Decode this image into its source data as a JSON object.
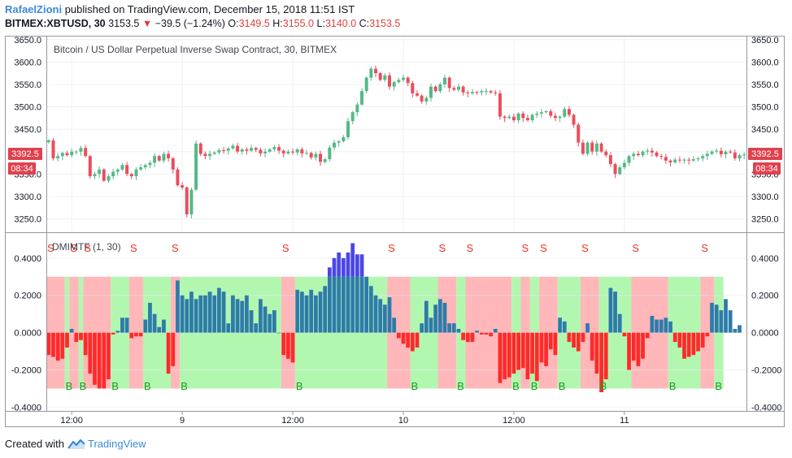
{
  "header": {
    "author": "RafaelZioni",
    "published_text": "published on TradingView.com, December 15, 2018 11:51 IST",
    "symbol": "BITMEX:XBTUSD, 30",
    "last": "3153.5",
    "change_arrow": "▼",
    "change": "−39.5 (−1.24%)",
    "o_label": "O:",
    "o_value": "3149.5",
    "h_label": "H:",
    "h_value": "3155.0",
    "l_label": "L:",
    "l_value": "3140.0",
    "c_label": "C:",
    "c_value": "3153.5"
  },
  "price_pane": {
    "title": "Bitcoin / US Dollar Perpetual Inverse Swap Contract, 30, BITMEX",
    "price_badge": "3392.5",
    "time_badge": "08:34"
  },
  "indicator_pane": {
    "title": "DMIMTF (1, 30)"
  },
  "footer": {
    "created_with": "Created with",
    "brand": "TradingView"
  },
  "colors": {
    "up": "#53b987",
    "down": "#eb4d5c",
    "badge": "#e0414e",
    "hist_pos": "#2e7bab",
    "hist_neg": "#ff2a2a",
    "hist_strong": "#4a46e8",
    "zone_buy": "#b2f7b0",
    "zone_sell": "#ffb7b9",
    "sig_s": "#e8342a",
    "sig_b": "#1c9c1c"
  },
  "chart_data": [
    {
      "type": "candlestick",
      "title": "Bitcoin / US Dollar Perpetual Inverse Swap Contract, 30, BITMEX",
      "ylim": [
        3220,
        3655
      ],
      "y_ticks": [
        3250,
        3300,
        3350,
        3400,
        3450,
        3500,
        3550,
        3600,
        3650
      ],
      "y_tick_labels": [
        "3250.0",
        "3300.0",
        "3350.0",
        "3400.0",
        "3450.0",
        "3500.0",
        "3550.0",
        "3600.0",
        "3650.0"
      ],
      "x_tick_labels": [
        "12:00",
        "9",
        "12:00",
        "10",
        "12:00",
        "11"
      ],
      "x_tick_bars": [
        5,
        29,
        53,
        77,
        101,
        125
      ],
      "close": [
        3425,
        3385,
        3390,
        3397,
        3392,
        3400,
        3400,
        3408,
        3390,
        3345,
        3350,
        3360,
        3335,
        3345,
        3355,
        3360,
        3370,
        3350,
        3345,
        3360,
        3365,
        3370,
        3375,
        3390,
        3380,
        3395,
        3385,
        3360,
        3325,
        3320,
        3260,
        3315,
        3418,
        3395,
        3390,
        3395,
        3398,
        3403,
        3402,
        3407,
        3413,
        3400,
        3405,
        3402,
        3408,
        3404,
        3396,
        3400,
        3405,
        3410,
        3402,
        3396,
        3400,
        3398,
        3405,
        3396,
        3397,
        3387,
        3395,
        3377,
        3383,
        3409,
        3420,
        3423,
        3432,
        3468,
        3488,
        3505,
        3535,
        3565,
        3585,
        3575,
        3560,
        3570,
        3545,
        3555,
        3560,
        3565,
        3553,
        3530,
        3525,
        3512,
        3520,
        3545,
        3535,
        3550,
        3565,
        3542,
        3538,
        3545,
        3532,
        3530,
        3533,
        3532,
        3535,
        3535,
        3532,
        3530,
        3478,
        3475,
        3478,
        3470,
        3485,
        3475,
        3470,
        3482,
        3485,
        3488,
        3490,
        3480,
        3475,
        3478,
        3495,
        3482,
        3460,
        3420,
        3395,
        3420,
        3400,
        3418,
        3400,
        3392,
        3372,
        3350,
        3365,
        3375,
        3390,
        3395,
        3392,
        3400,
        3402,
        3398,
        3390,
        3388,
        3380,
        3376,
        3382,
        3380,
        3382,
        3380,
        3383,
        3385,
        3390,
        3395,
        3400,
        3402,
        3394,
        3400,
        3398,
        3385,
        3392,
        3393.5
      ]
    },
    {
      "type": "bar",
      "title": "DMIMTF (1, 30)",
      "ylim": [
        -0.42,
        0.53
      ],
      "y_ticks": [
        -0.4,
        -0.2,
        0,
        0.2,
        0.4
      ],
      "y_tick_labels": [
        "-0.4000",
        "-0.2000",
        "0.0000",
        "0.2000",
        "0.4000"
      ],
      "zones": [
        {
          "from": 0,
          "to": 4,
          "signal": "S"
        },
        {
          "from": 4,
          "to": 5,
          "signal": "B"
        },
        {
          "from": 5,
          "to": 7,
          "signal": "S"
        },
        {
          "from": 7,
          "to": 8,
          "signal": "B"
        },
        {
          "from": 8,
          "to": 14,
          "signal": "S"
        },
        {
          "from": 14,
          "to": 18,
          "signal": "B"
        },
        {
          "from": 18,
          "to": 21,
          "signal": "S"
        },
        {
          "from": 21,
          "to": 27,
          "signal": "B"
        },
        {
          "from": 27,
          "to": 29,
          "signal": "S"
        },
        {
          "from": 29,
          "to": 51,
          "signal": "B"
        },
        {
          "from": 51,
          "to": 54,
          "signal": "S"
        },
        {
          "from": 54,
          "to": 74,
          "signal": "B"
        },
        {
          "from": 74,
          "to": 79,
          "signal": "S"
        },
        {
          "from": 79,
          "to": 85,
          "signal": "B"
        },
        {
          "from": 85,
          "to": 89,
          "signal": "S"
        },
        {
          "from": 89,
          "to": 91,
          "signal": "B"
        },
        {
          "from": 91,
          "to": 101,
          "signal": "S"
        },
        {
          "from": 101,
          "to": 103,
          "signal": "B"
        },
        {
          "from": 103,
          "to": 105,
          "signal": "S"
        },
        {
          "from": 105,
          "to": 107,
          "signal": "B"
        },
        {
          "from": 107,
          "to": 111,
          "signal": "S"
        },
        {
          "from": 111,
          "to": 116,
          "signal": "B"
        },
        {
          "from": 116,
          "to": 120,
          "signal": "S"
        },
        {
          "from": 120,
          "to": 127,
          "signal": "B"
        },
        {
          "from": 127,
          "to": 135,
          "signal": "S"
        },
        {
          "from": 135,
          "to": 142,
          "signal": "B"
        },
        {
          "from": 142,
          "to": 145,
          "signal": "S"
        },
        {
          "from": 145,
          "to": 147,
          "signal": "B"
        }
      ],
      "values": [
        -0.12,
        -0.13,
        -0.15,
        -0.14,
        -0.08,
        0.02,
        -0.05,
        -0.04,
        -0.12,
        -0.22,
        -0.28,
        -0.3,
        -0.3,
        -0.25,
        -0.01,
        0.01,
        0.08,
        0.08,
        -0.03,
        -0.02,
        -0.02,
        0.07,
        0.16,
        0.1,
        0.03,
        0.07,
        -0.22,
        -0.18,
        0.28,
        0.2,
        0.18,
        0.22,
        0.18,
        0.2,
        0.2,
        0.22,
        0.2,
        0.24,
        0.22,
        0.05,
        0.2,
        0.18,
        0.17,
        0.2,
        0.12,
        0.05,
        0.18,
        0.14,
        0.1,
        0.12,
        0.0,
        -0.12,
        -0.14,
        -0.16,
        0.23,
        0.22,
        0.2,
        0.23,
        0.2,
        0.22,
        0.25,
        0.35,
        0.4,
        0.43,
        0.4,
        0.43,
        0.48,
        0.42,
        0.42,
        0.3,
        0.25,
        0.2,
        0.18,
        0.15,
        0.19,
        0.08,
        -0.03,
        -0.06,
        -0.08,
        -0.1,
        -0.08,
        0.05,
        0.17,
        0.08,
        0.15,
        0.18,
        0.16,
        0.05,
        0.05,
        0.02,
        -0.04,
        -0.05,
        -0.05,
        0.01,
        -0.01,
        -0.01,
        -0.02,
        0.02,
        -0.27,
        -0.25,
        -0.24,
        -0.22,
        -0.2,
        -0.19,
        -0.25,
        -0.22,
        -0.26,
        -0.16,
        -0.18,
        -0.09,
        -0.12,
        0.08,
        0.06,
        -0.05,
        -0.08,
        -0.1,
        -0.05,
        0.05,
        -0.15,
        -0.22,
        -0.32,
        -0.25,
        0.24,
        0.22,
        0.1,
        -0.02,
        -0.2,
        -0.15,
        -0.18,
        -0.14,
        -0.03,
        0.09,
        0.07,
        0.07,
        0.08,
        0.06,
        -0.05,
        -0.08,
        -0.14,
        -0.13,
        -0.12,
        -0.1,
        -0.08,
        -0.02,
        0.16,
        0.15,
        0.12,
        0.18,
        0.12,
        0.02,
        0.04
      ]
    }
  ]
}
